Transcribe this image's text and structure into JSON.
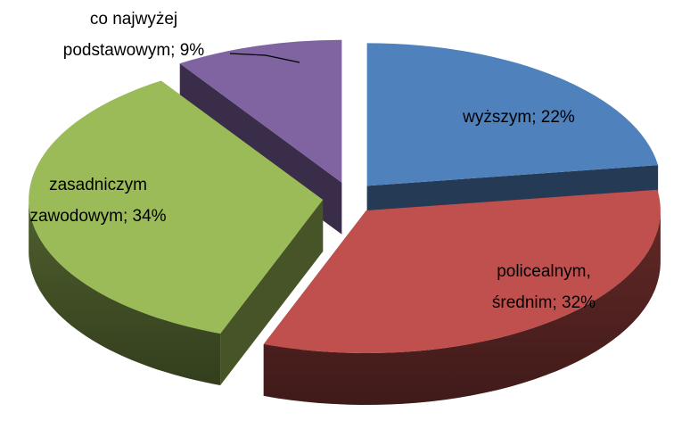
{
  "chart_data": {
    "type": "pie3d",
    "values": [
      22,
      32,
      34,
      9
    ],
    "value_labels": [
      "wyższym; 22%",
      "policealnym,\nśrednim; 32%",
      "zasadniczym\nzawodowym; 34%",
      "co najwyżej\npodstawowym; 9%"
    ],
    "colors": [
      "#4f81bd",
      "#c0504d",
      "#9bbb59",
      "#8064a2"
    ],
    "exploded": true
  }
}
